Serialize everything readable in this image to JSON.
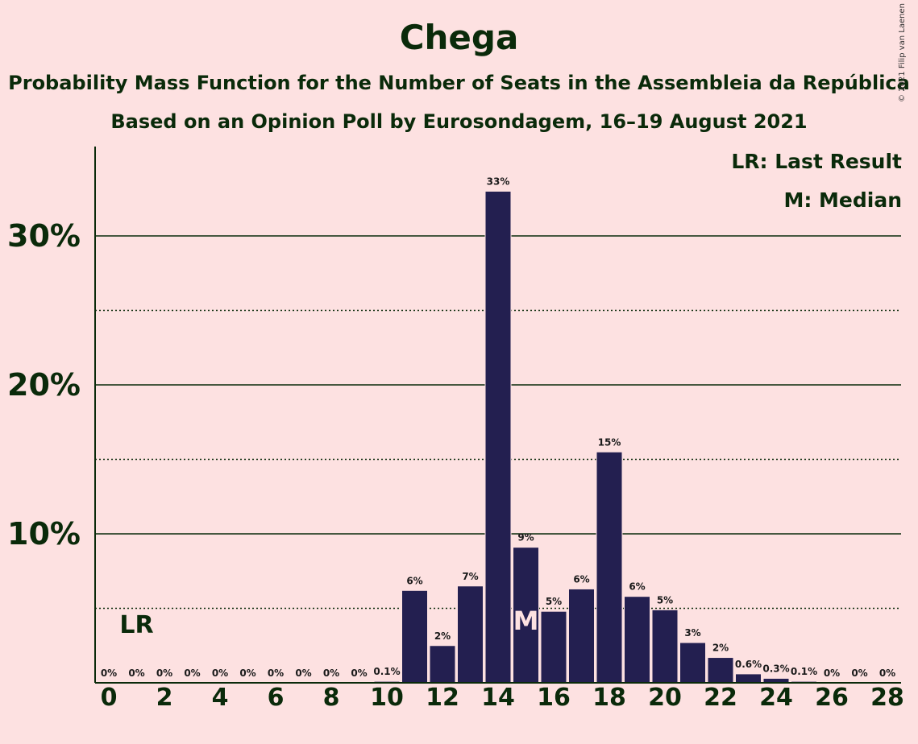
{
  "chart_data": {
    "type": "bar",
    "title": "Chega",
    "subtitle": "Probability Mass Function for the Number of Seats in the Assembleia da República",
    "subtitle2": "Based on an Opinion Poll by Eurosondagem, 16–19 August 2021",
    "copyright": "© 2021 Filip van Laenen",
    "categories": [
      0,
      1,
      2,
      3,
      4,
      5,
      6,
      7,
      8,
      9,
      10,
      11,
      12,
      13,
      14,
      15,
      16,
      17,
      18,
      19,
      20,
      21,
      22,
      23,
      24,
      25,
      26,
      27,
      28
    ],
    "values": [
      0,
      0,
      0,
      0,
      0,
      0,
      0,
      0,
      0,
      0,
      0.1,
      6.2,
      2.5,
      6.5,
      33.0,
      9.1,
      4.8,
      6.3,
      15.5,
      5.8,
      4.9,
      2.7,
      1.7,
      0.6,
      0.3,
      0.1,
      0,
      0,
      0
    ],
    "value_labels": [
      "0%",
      "0%",
      "0%",
      "0%",
      "0%",
      "0%",
      "0%",
      "0%",
      "0%",
      "0%",
      "0.1%",
      "6%",
      "2%",
      "7%",
      "33%",
      "9%",
      "5%",
      "6%",
      "15%",
      "6%",
      "5%",
      "3%",
      "2%",
      "0.6%",
      "0.3%",
      "0.1%",
      "0%",
      "0%",
      "0%"
    ],
    "x_tick_labels": [
      "0",
      "2",
      "4",
      "6",
      "8",
      "10",
      "12",
      "14",
      "16",
      "18",
      "20",
      "22",
      "24",
      "26",
      "28"
    ],
    "y_tick_labels": [
      "10%",
      "20%",
      "30%"
    ],
    "ylim": [
      0,
      36
    ],
    "last_result_seat": 1,
    "last_result_label": "LR",
    "median_seat": 15,
    "median_label": "M",
    "legend": [
      "LR: Last Result",
      "M: Median"
    ],
    "legend_placement": "top-right",
    "colors": {
      "bar": "#231f50",
      "background": "#fde1e1",
      "text": "#0a2a0a",
      "median_marker": "#fde1e1"
    }
  }
}
